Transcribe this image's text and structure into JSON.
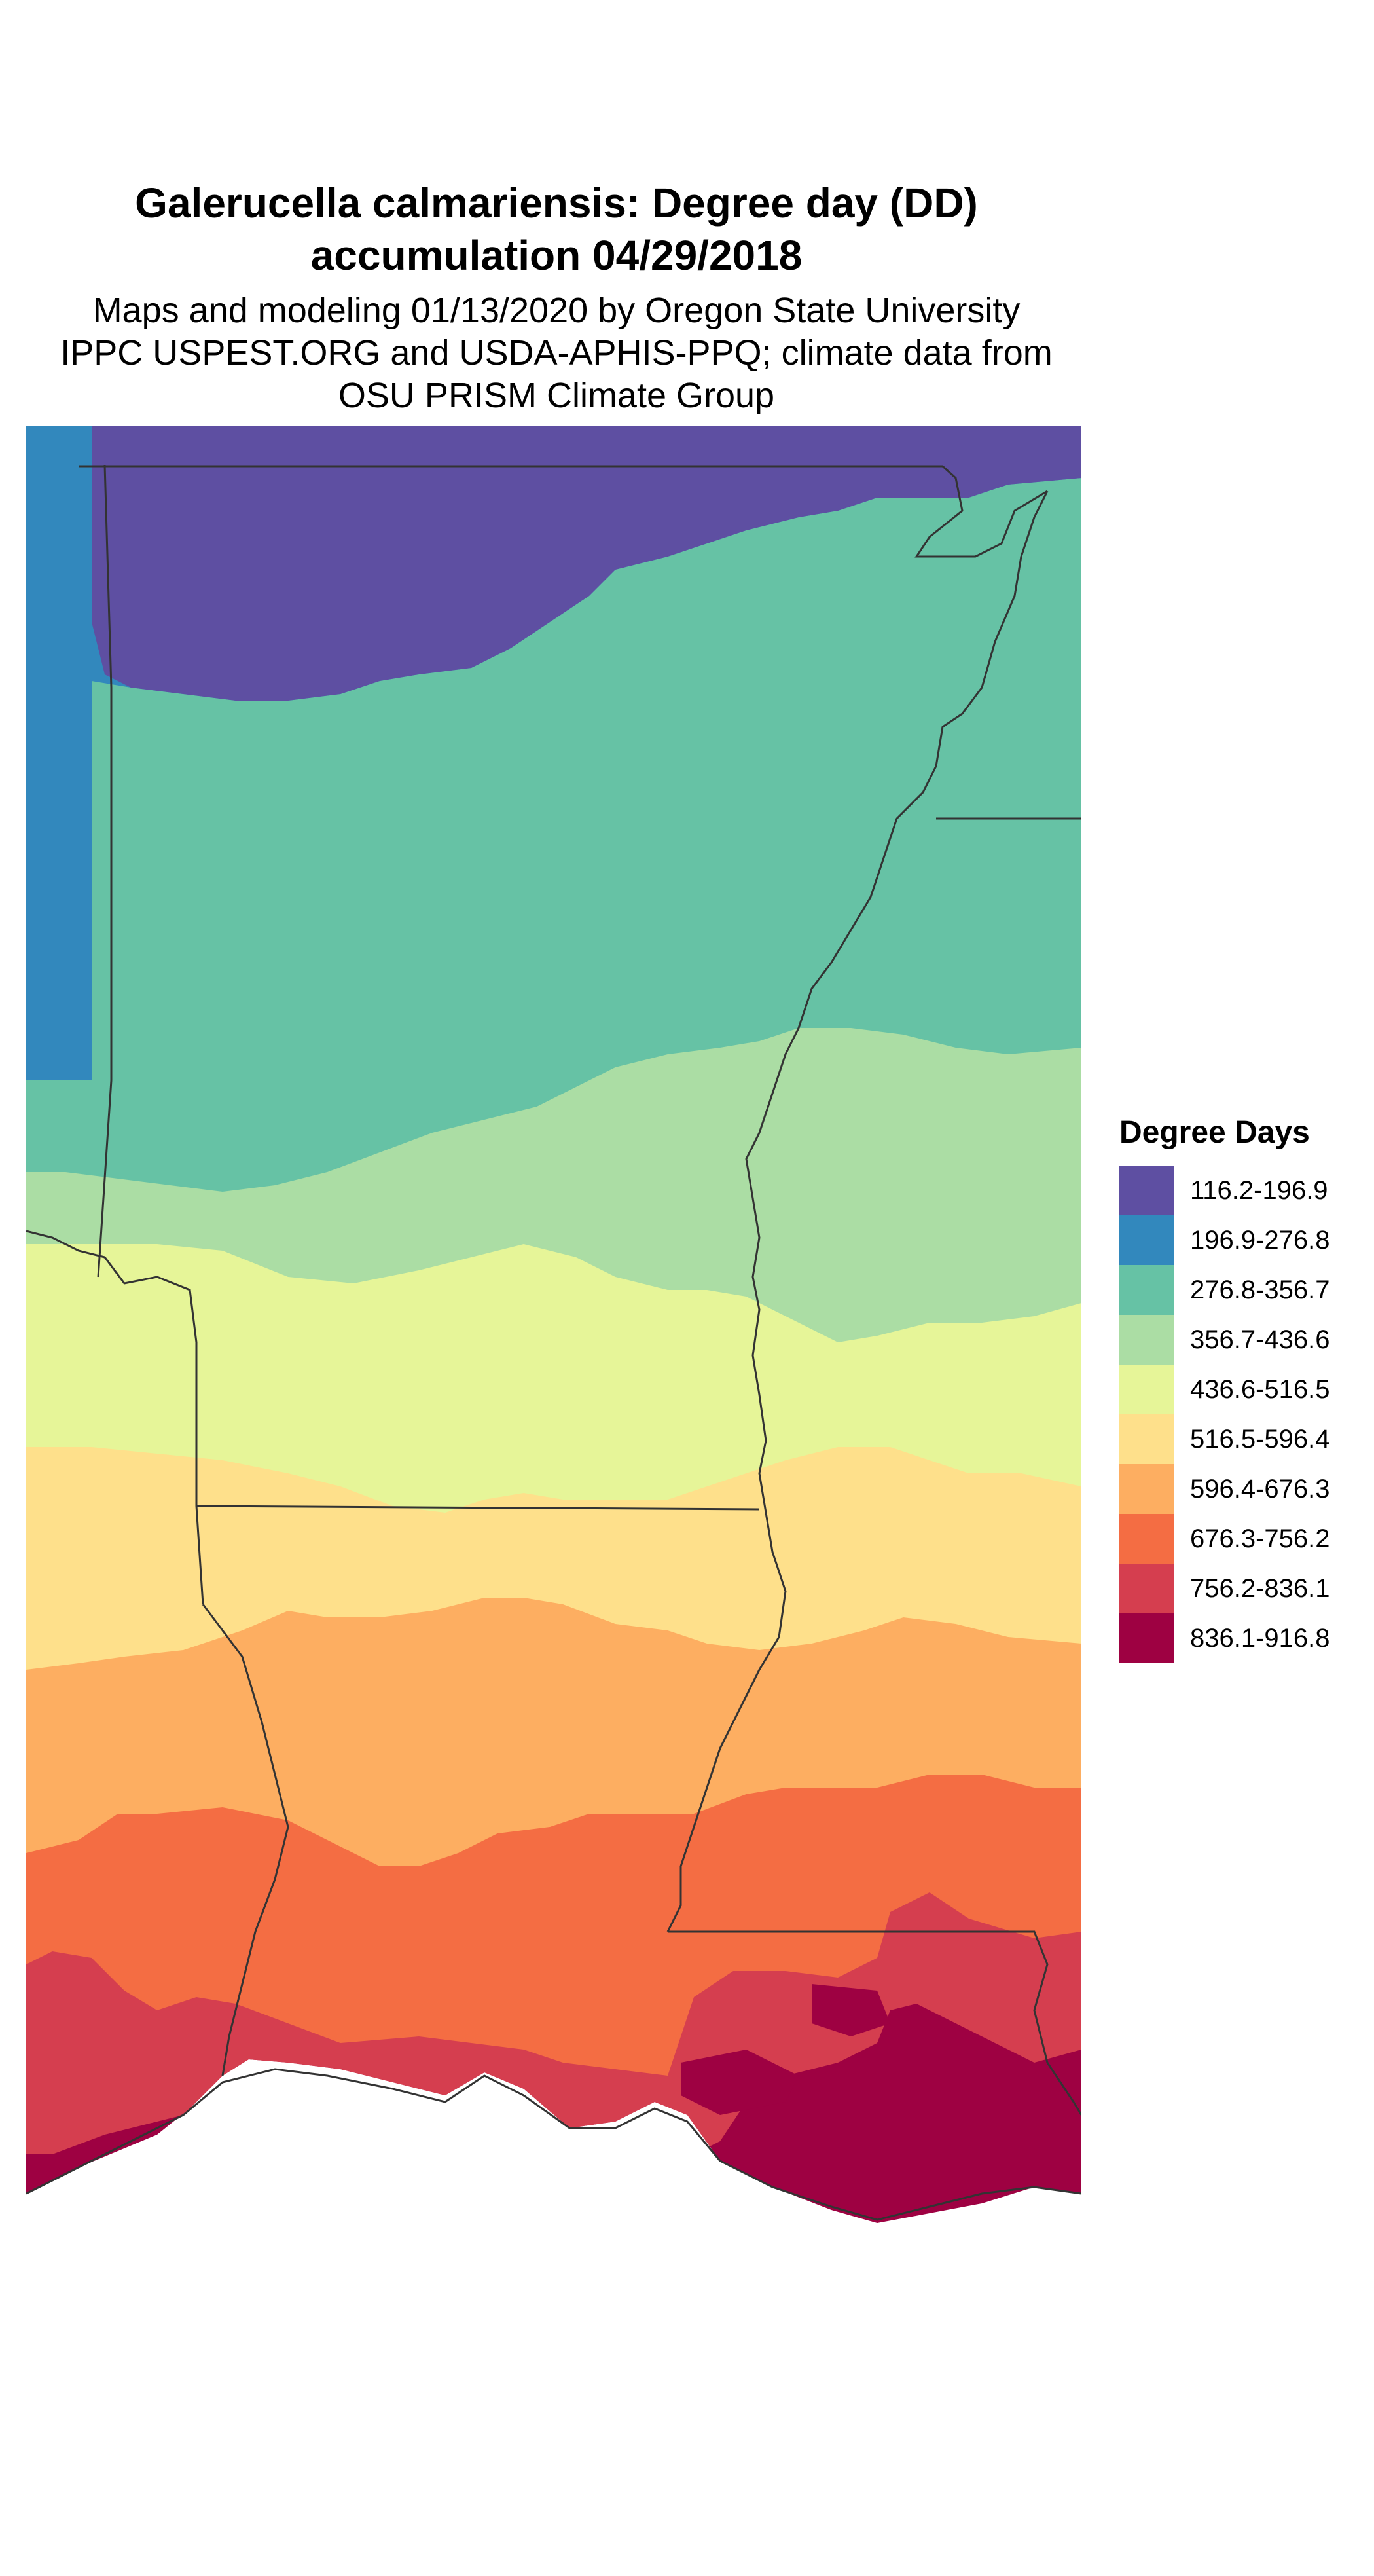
{
  "title": {
    "line1": "Galerucella calmariensis: Degree day (DD)",
    "line2": "accumulation 04/29/2018"
  },
  "subtitle": {
    "line1": "Maps and modeling 01/13/2020 by Oregon State University",
    "line2": "IPPC USPEST.ORG and USDA-APHIS-PPQ; climate data from",
    "line3": "OSU PRISM Climate Group"
  },
  "legend": {
    "title": "Degree Days",
    "items": [
      {
        "label": "116.2-196.9",
        "color": "#5e4fa2"
      },
      {
        "label": "196.9-276.8",
        "color": "#3288bd"
      },
      {
        "label": "276.8-356.7",
        "color": "#66c2a5"
      },
      {
        "label": "356.7-436.6",
        "color": "#abdda4"
      },
      {
        "label": "436.6-516.5",
        "color": "#e6f598"
      },
      {
        "label": "516.5-596.4",
        "color": "#fee08b"
      },
      {
        "label": "596.4-676.3",
        "color": "#fdae61"
      },
      {
        "label": "676.3-756.2",
        "color": "#f46d43"
      },
      {
        "label": "756.2-836.1",
        "color": "#d53e4f"
      },
      {
        "label": "836.1-916.8",
        "color": "#9e0142"
      }
    ]
  }
}
